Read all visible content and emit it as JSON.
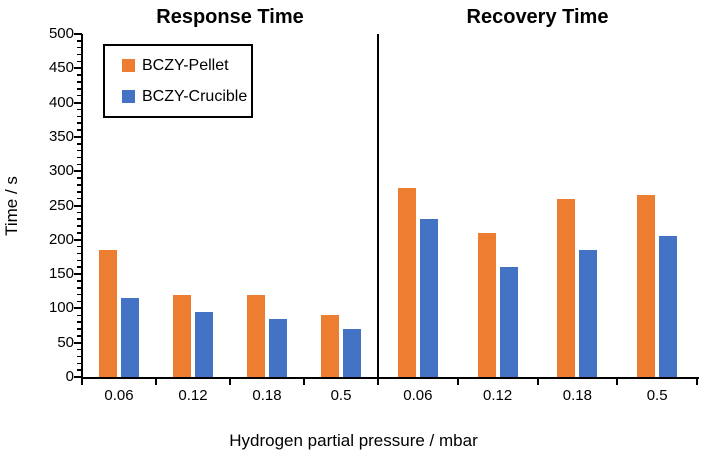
{
  "chart_data": {
    "type": "bar",
    "layout": "two-panel grouped bar chart sharing one y-axis, panels separated by a vertical black line, legend boxed top-left, no gridlines",
    "ylabel": "Time / s",
    "xlabel": "Hydrogen partial pressure / mbar",
    "ylim": [
      0,
      500
    ],
    "yticks": [
      0,
      50,
      100,
      150,
      200,
      250,
      300,
      350,
      400,
      450,
      500
    ],
    "minor_tick_interval": 10,
    "categories": [
      "0.06",
      "0.12",
      "0.18",
      "0.5"
    ],
    "legend": {
      "position": "top-left inside plot",
      "items": [
        {
          "label": "BCZY-Pellet",
          "color": "#ED7D31"
        },
        {
          "label": "BCZY-Crucible",
          "color": "#4472C4"
        }
      ]
    },
    "panels": [
      {
        "title": "Response Time",
        "series": [
          {
            "name": "BCZY-Pellet",
            "color": "#ED7D31",
            "values": [
              185,
              120,
              120,
              90
            ]
          },
          {
            "name": "BCZY-Crucible",
            "color": "#4472C4",
            "values": [
              115,
              95,
              85,
              70
            ]
          }
        ]
      },
      {
        "title": "Recovery Time",
        "series": [
          {
            "name": "BCZY-Pellet",
            "color": "#ED7D31",
            "values": [
              275,
              210,
              260,
              265
            ]
          },
          {
            "name": "BCZY-Crucible",
            "color": "#4472C4",
            "values": [
              230,
              160,
              185,
              205
            ]
          }
        ]
      }
    ],
    "axis_color": "#000000",
    "background": "#FFFFFF"
  }
}
